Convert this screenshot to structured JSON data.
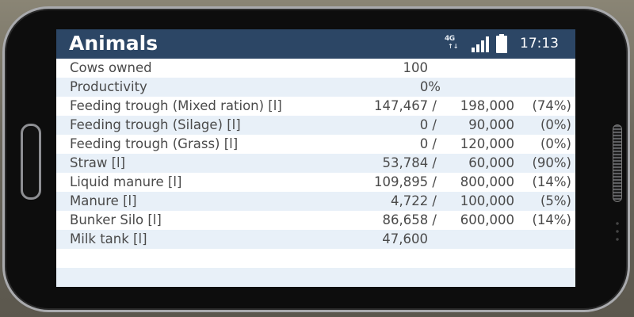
{
  "app": {
    "title": "Animals"
  },
  "status_bar": {
    "network_type_top": "4G",
    "network_type_bottom": "↑↓",
    "signal_icon": "signal-bars-icon",
    "battery_icon": "battery-full-icon",
    "time": "17:13"
  },
  "colors": {
    "header_bg": "#2c4665",
    "row_alt_bg": "#e8f0f8",
    "text": "#4a4a4a"
  },
  "rows": [
    {
      "label": "Cows owned",
      "value": "100",
      "capacity": "",
      "percent": ""
    },
    {
      "label": "Productivity",
      "value": "0%",
      "capacity": "",
      "percent": ""
    },
    {
      "label": "Feeding trough (Mixed ration) [l]",
      "value": "147,467 /",
      "capacity": "198,000",
      "percent": "(74%)"
    },
    {
      "label": "Feeding trough (Silage) [l]",
      "value": "0 /",
      "capacity": "90,000",
      "percent": "(0%)"
    },
    {
      "label": "Feeding trough (Grass) [l]",
      "value": "0 /",
      "capacity": "120,000",
      "percent": "(0%)"
    },
    {
      "label": "Straw [l]",
      "value": "53,784 /",
      "capacity": "60,000",
      "percent": "(90%)"
    },
    {
      "label": "Liquid manure [l]",
      "value": "109,895 /",
      "capacity": "800,000",
      "percent": "(14%)"
    },
    {
      "label": "Manure [l]",
      "value": "4,722 /",
      "capacity": "100,000",
      "percent": "(5%)"
    },
    {
      "label": "Bunker Silo [l]",
      "value": "86,658 /",
      "capacity": "600,000",
      "percent": "(14%)"
    },
    {
      "label": "Milk tank [l]",
      "value": "47,600",
      "capacity": "",
      "percent": ""
    }
  ]
}
